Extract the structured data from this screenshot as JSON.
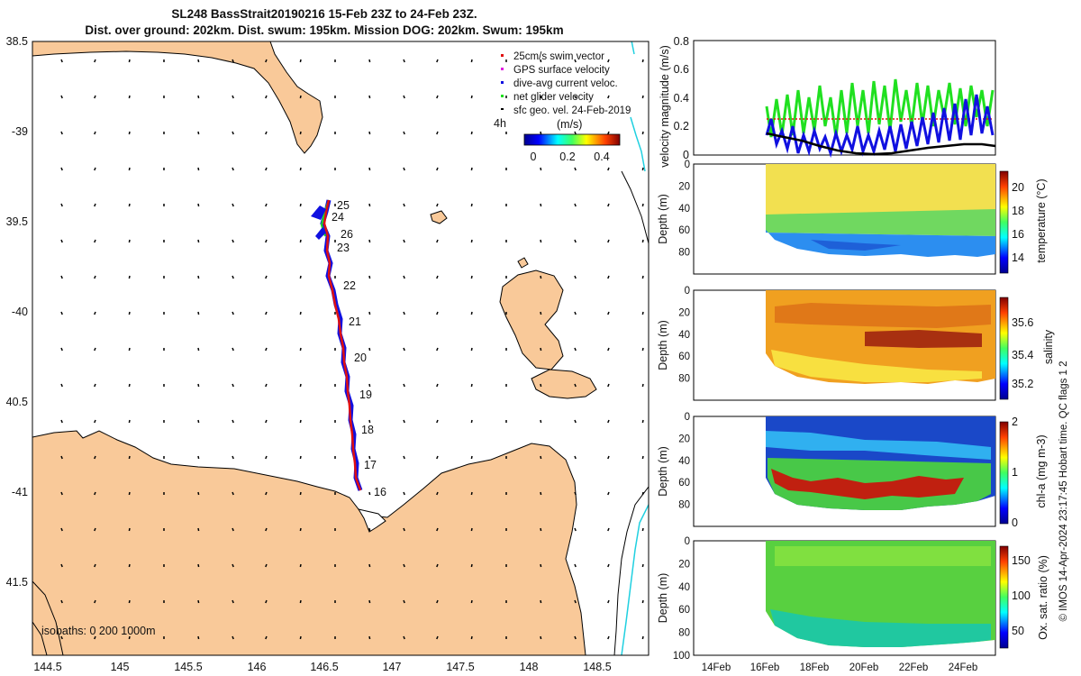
{
  "header": {
    "title_line1": "SL248 BassStrait20190216 15-Feb 23Z to 24-Feb 23Z.",
    "title_line2": "Dist. over ground: 202km. Dist. swum: 195km. Mission DOG: 202km. Swum: 195km"
  },
  "colors": {
    "land": "#f9c999",
    "track": "#e01010",
    "current": "#1010e0",
    "net_velocity": "#20e020",
    "coast": "#000000",
    "isobath_deep": "#20d0e0"
  },
  "map": {
    "lat_ticks": [
      "38.5",
      "-39",
      "39.5",
      "-40",
      "40.5",
      "-41",
      "41.5"
    ],
    "lon_ticks": [
      "144.5",
      "145",
      "145.5",
      "146",
      "146.5",
      "147",
      "147.5",
      "148",
      "148.5"
    ],
    "legend": {
      "items": [
        "25cm/s swim vector",
        "GPS surface velocity",
        "dive-avg current veloc.",
        "net glider velocity",
        "sfc geo. vel. 24-Feb-2019"
      ],
      "scale_label": "4h",
      "colorbar_unit": "(m/s)",
      "colorbar_ticks": [
        "0",
        "0.2",
        "0.4"
      ]
    },
    "isobaths_label": "isobaths: 0   200  1000m",
    "day_labels": [
      "25",
      "24",
      "26",
      "23",
      "22",
      "21",
      "20",
      "19",
      "18",
      "17",
      "16"
    ]
  },
  "right_panels": {
    "velocity": {
      "ylabel": "velocity magnitude (m/s)",
      "yticks": [
        "0",
        "0.2",
        "0.4",
        "0.6",
        "0.8"
      ]
    },
    "temperature": {
      "ylabel": "Depth (m)",
      "cblabel": "temperature (°C)",
      "cbticks": [
        "14",
        "16",
        "18",
        "20"
      ]
    },
    "salinity": {
      "ylabel": "Depth (m)",
      "cblabel": "salinity",
      "cbticks": [
        "35.2",
        "35.4",
        "35.6"
      ]
    },
    "chla": {
      "ylabel": "Depth (m)",
      "cblabel": "chl-a (mg m-3)",
      "cbticks": [
        "0",
        "1",
        "2"
      ]
    },
    "oxygen": {
      "ylabel": "Depth (m)",
      "cblabel": "Ox. sat. ratio (%)",
      "cbticks": [
        "50",
        "100",
        "150"
      ]
    },
    "depth_ticks": [
      "0",
      "20",
      "40",
      "60",
      "80",
      "100"
    ],
    "x_ticks": [
      "14Feb",
      "16Feb",
      "18Feb",
      "20Feb",
      "22Feb",
      "24Feb"
    ],
    "credit": "© IMOS 14-Apr-2024 23:17:45 Hobart time. QC flags 1  2"
  }
}
